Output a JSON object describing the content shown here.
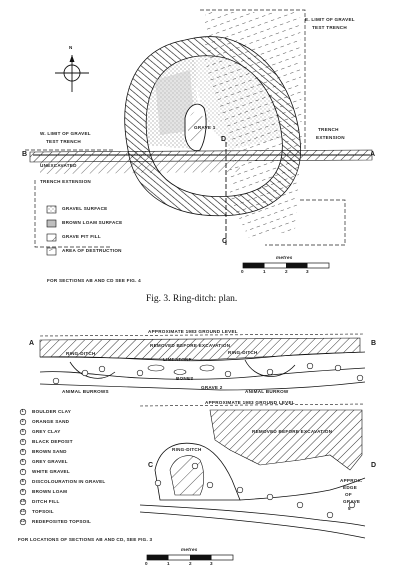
{
  "plan": {
    "north": "N",
    "labels": {
      "e_limit_gravel": "E. LIMIT OF GRAVEL",
      "test_trench": "TEST TRENCH",
      "trench_extension_right": "TRENCH",
      "extension_right": "EXTENSION",
      "w_limit_gravel": "W. LIMIT OF GRAVEL",
      "test_trench_left": "TEST TRENCH",
      "grave_1": "GRAVE 1",
      "unexcavated": "UNEXCAVATED",
      "trench_extension_left": "TRENCH EXTENSION",
      "point_b": "B",
      "point_a": "A",
      "point_d": "D",
      "point_c": "C"
    },
    "legend": [
      {
        "key": "gravel",
        "label": "GRAVEL SURFACE"
      },
      {
        "key": "loam",
        "label": "BROWN LOAM SURFACE"
      },
      {
        "key": "pit",
        "label": "GRAVE PIT FILL"
      },
      {
        "key": "destruction",
        "label": "AREA OF DESTRUCTION"
      }
    ],
    "sections_note": "FOR SECTIONS AB AND CD SEE FIG. 4",
    "scale": {
      "unit": "metres",
      "ticks": [
        "0",
        "1",
        "2",
        "3"
      ]
    },
    "caption": "Fig. 3. Ring-ditch: plan."
  },
  "section_ab": {
    "ground_level": "APPROXIMATE 1983 GROUND LEVEL",
    "removed": "REMOVED BEFORE EXCAVATION",
    "ring_ditch_left": "RING-DITCH",
    "ring_ditch_right": "RING-DITCH",
    "limestone": "LIMESTONE",
    "bones": "BONES",
    "grave_2": "GRAVE 2",
    "animal_burrows": "ANIMAL BURROWS",
    "animal_burrow": "ANIMAL BURROW",
    "point_a": "A",
    "point_b": "B"
  },
  "key_list": [
    {
      "n": "1",
      "label": "BOULDER CLAY"
    },
    {
      "n": "2",
      "label": "ORANGE SAND"
    },
    {
      "n": "3",
      "label": "GREY CLAY"
    },
    {
      "n": "4",
      "label": "BLACK DEPOSIT"
    },
    {
      "n": "5",
      "label": "BROWN SAND"
    },
    {
      "n": "6",
      "label": "GREY GRAVEL"
    },
    {
      "n": "7",
      "label": "WHITE GRAVEL"
    },
    {
      "n": "8",
      "label": "DISCOLOURATION IN GRAVEL"
    },
    {
      "n": "9",
      "label": "BROWN LOAM"
    },
    {
      "n": "10",
      "label": "DITCH FILL"
    },
    {
      "n": "11",
      "label": "TOPSOIL"
    },
    {
      "n": "12",
      "label": "REDEPOSITED TOPSOIL"
    }
  ],
  "section_cd": {
    "ground_level": "APPROXIMATE 1983 GROUND LEVEL",
    "removed": "REMOVED BEFORE EXCAVATION",
    "ring_ditch": "RING-DITCH",
    "approx_edge": [
      "APPROX.",
      "EDGE",
      "OF",
      "GRAVE",
      "5"
    ],
    "point_c": "C",
    "point_d": "D"
  },
  "locations_note": "FOR LOCATIONS OF SECTIONS AB AND CD, SEE FIG. 3",
  "scale2": {
    "unit": "metres",
    "ticks": [
      "0",
      "1",
      "2",
      "3"
    ]
  }
}
